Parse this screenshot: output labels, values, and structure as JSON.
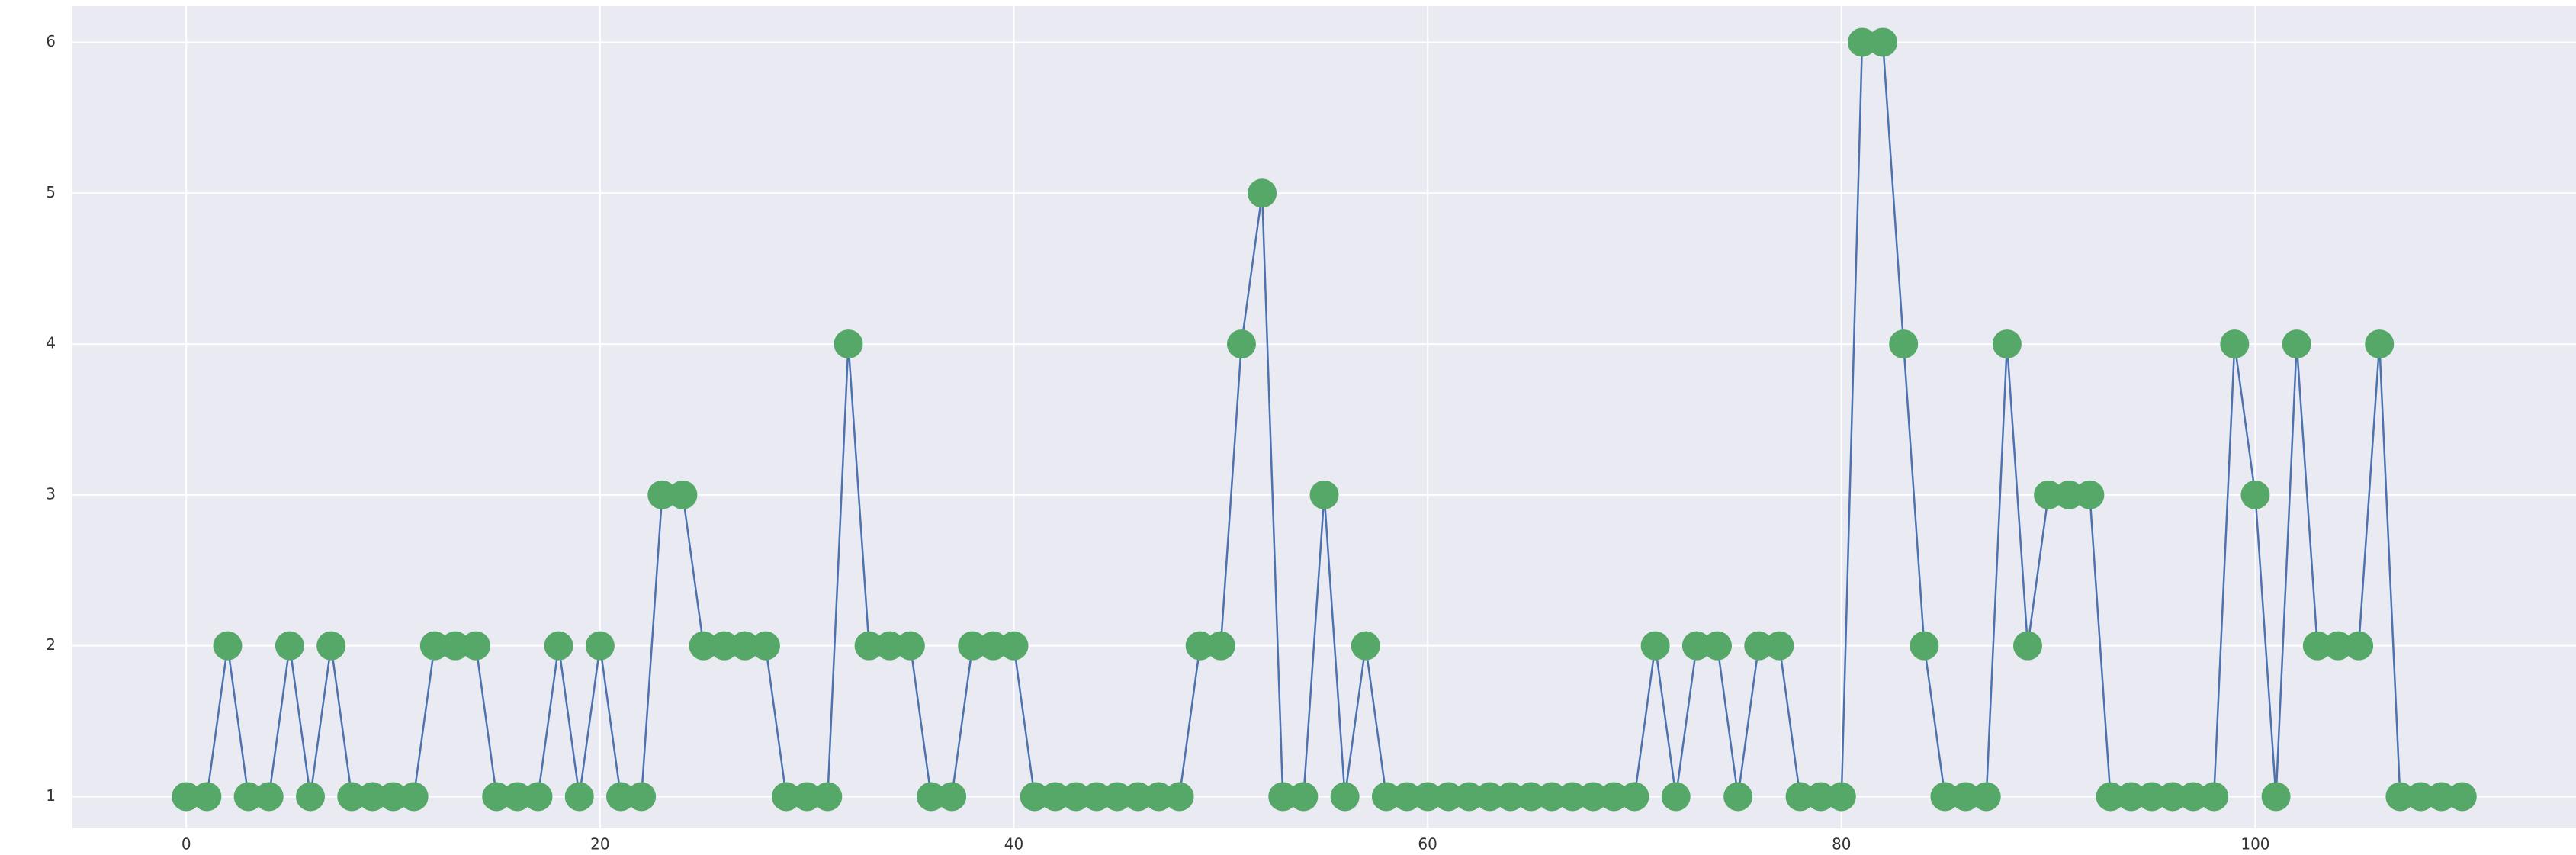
{
  "chart_data": {
    "type": "line",
    "x": [
      0,
      1,
      2,
      3,
      4,
      5,
      6,
      7,
      8,
      9,
      10,
      11,
      12,
      13,
      14,
      15,
      16,
      17,
      18,
      19,
      20,
      21,
      22,
      23,
      24,
      25,
      26,
      27,
      28,
      29,
      30,
      31,
      32,
      33,
      34,
      35,
      36,
      37,
      38,
      39,
      40,
      41,
      42,
      43,
      44,
      45,
      46,
      47,
      48,
      49,
      50,
      51,
      52,
      53,
      54,
      55,
      56,
      57,
      58,
      59,
      60,
      61,
      62,
      63,
      64,
      65,
      66,
      67,
      68,
      69,
      70,
      71,
      72,
      73,
      74,
      75,
      76,
      77,
      78,
      79,
      80,
      81,
      82,
      83,
      84,
      85,
      86,
      87,
      88,
      89,
      90,
      91,
      92,
      93,
      94,
      95,
      96,
      97,
      98,
      99,
      100,
      101,
      102,
      103,
      104,
      105,
      106,
      107,
      108,
      109,
      110
    ],
    "values": [
      1,
      1,
      2,
      1,
      1,
      2,
      1,
      2,
      1,
      1,
      1,
      1,
      2,
      2,
      2,
      1,
      1,
      1,
      2,
      1,
      2,
      1,
      1,
      3,
      3,
      2,
      2,
      2,
      2,
      1,
      1,
      1,
      4,
      2,
      2,
      2,
      1,
      1,
      2,
      2,
      2,
      1,
      1,
      1,
      1,
      1,
      1,
      1,
      1,
      2,
      2,
      4,
      5,
      1,
      1,
      3,
      1,
      2,
      1,
      1,
      1,
      1,
      1,
      1,
      1,
      1,
      1,
      1,
      1,
      1,
      1,
      2,
      1,
      2,
      2,
      1,
      2,
      2,
      1,
      1,
      1,
      6,
      6,
      4,
      2,
      1,
      1,
      1,
      4,
      2,
      3,
      3,
      3,
      1,
      1,
      1,
      1,
      1,
      1,
      4,
      3,
      1,
      4,
      2,
      2,
      2,
      4,
      1,
      1,
      1,
      1
    ],
    "line_color": "#4c72b0",
    "marker_color": "#55a868",
    "xlim": [
      -5.5,
      115.5
    ],
    "xticks": [
      0,
      20,
      40,
      60,
      80,
      100
    ],
    "ylim": [
      0.79,
      6.24
    ],
    "yticks": [
      1,
      2,
      3,
      4,
      5,
      6
    ],
    "grid": true
  }
}
